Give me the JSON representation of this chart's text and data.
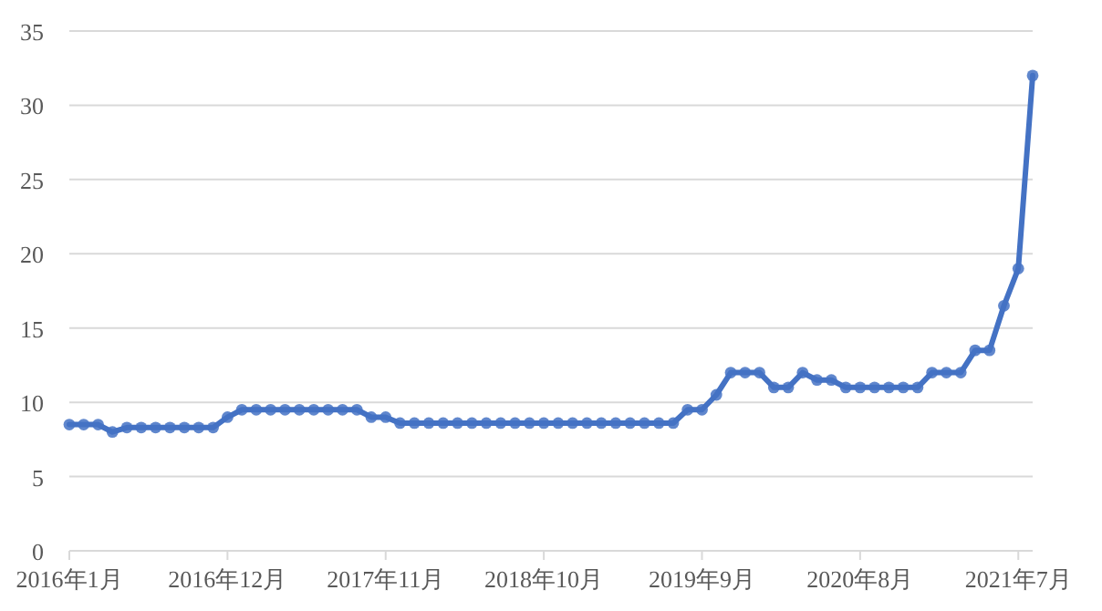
{
  "chart_data": {
    "type": "line",
    "categories": [
      "2016年1月",
      null,
      null,
      null,
      null,
      null,
      null,
      null,
      null,
      null,
      null,
      "2016年12月",
      null,
      null,
      null,
      null,
      null,
      null,
      null,
      null,
      null,
      null,
      "2017年11月",
      null,
      null,
      null,
      null,
      null,
      null,
      null,
      null,
      null,
      null,
      "2018年10月",
      null,
      null,
      null,
      null,
      null,
      null,
      null,
      null,
      null,
      null,
      "2019年9月",
      null,
      null,
      null,
      null,
      null,
      null,
      null,
      null,
      null,
      null,
      "2020年8月",
      null,
      null,
      null,
      null,
      null,
      null,
      null,
      null,
      null,
      null,
      "2021年7月",
      null
    ],
    "series": [
      {
        "color": "#4472c4",
        "values": [
          8.5,
          8.5,
          8.5,
          8.0,
          8.3,
          8.3,
          8.3,
          8.3,
          8.3,
          8.3,
          8.3,
          9.0,
          9.5,
          9.5,
          9.5,
          9.5,
          9.5,
          9.5,
          9.5,
          9.5,
          9.5,
          9.0,
          9.0,
          8.6,
          8.6,
          8.6,
          8.6,
          8.6,
          8.6,
          8.6,
          8.6,
          8.6,
          8.6,
          8.6,
          8.6,
          8.6,
          8.6,
          8.6,
          8.6,
          8.6,
          8.6,
          8.6,
          8.6,
          9.5,
          9.5,
          10.5,
          12,
          12,
          12,
          11,
          11,
          12,
          11.5,
          11.5,
          11,
          11,
          11,
          11,
          11,
          11,
          12,
          12,
          12,
          13.5,
          13.5,
          16.5,
          19,
          32
        ]
      }
    ],
    "ylim": [
      0,
      35
    ],
    "yticks": [
      0,
      5,
      10,
      15,
      20,
      25,
      30,
      35
    ],
    "grid": "y",
    "marker": "circle",
    "line_style": "solid"
  }
}
